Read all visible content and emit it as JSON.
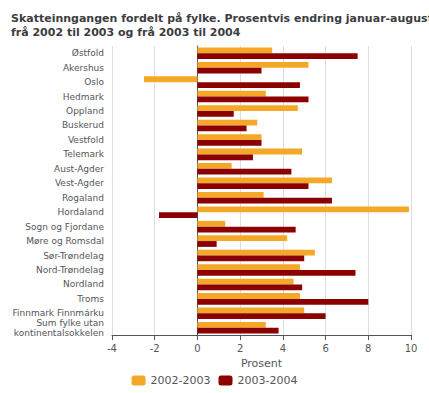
{
  "chart_data": {
    "type": "bar",
    "orientation": "horizontal",
    "title": "Skatteinngangen fordelt på fylke. Prosentvis endring januar-august\nfrå 2002 til 2003 og frå 2003 til 2004",
    "categories": [
      "Østfold",
      "Akershus",
      "Oslo",
      "Hedmark",
      "Oppland",
      "Buskerud",
      "Vestfold",
      "Telemark",
      "Aust-Agder",
      "Vest-Agder",
      "Rogaland",
      "Hordaland",
      "Sogn og Fjordane",
      "Møre og Romsdal",
      "Sør-Trøndelag",
      "Nord-Trøndelag",
      "Nordland",
      "Troms",
      "Finnmark Finnmárku",
      "Sum fylke utan\nkontinentalsokkelen"
    ],
    "series": [
      {
        "name": "2002-2003",
        "color": "#F5A828",
        "values": [
          3.5,
          5.2,
          -2.5,
          3.2,
          4.7,
          2.8,
          3.0,
          4.9,
          1.6,
          6.3,
          3.1,
          9.9,
          1.3,
          4.2,
          5.5,
          4.8,
          4.5,
          4.8,
          5.0,
          3.2
        ]
      },
      {
        "name": "2003-2004",
        "color": "#8B0000",
        "values": [
          7.5,
          3.0,
          4.8,
          5.2,
          1.7,
          2.3,
          3.0,
          2.6,
          4.4,
          5.2,
          6.3,
          -1.8,
          4.6,
          0.9,
          5.0,
          7.4,
          4.9,
          8.0,
          6.0,
          3.8
        ]
      }
    ],
    "xlabel": "Prosent",
    "xlim": [
      -4,
      10
    ],
    "xticks": [
      -4,
      -2,
      0,
      2,
      4,
      6,
      8,
      10
    ],
    "grid": true,
    "legend": "bottom"
  }
}
